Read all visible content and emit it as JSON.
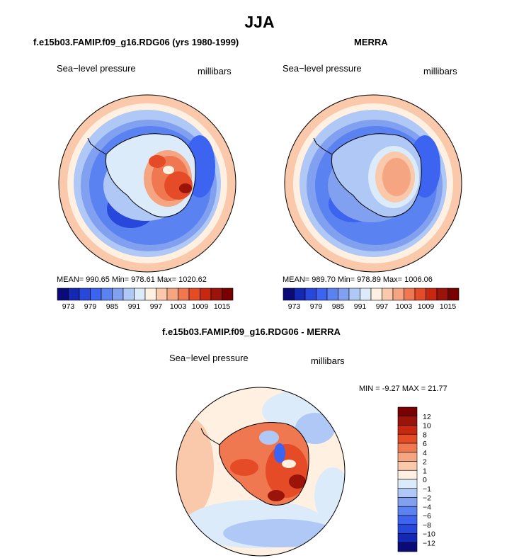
{
  "title": "JJA",
  "colors": {
    "mean_scale": [
      "#0a0a78",
      "#1428b4",
      "#2848dc",
      "#3c64f0",
      "#5a82f0",
      "#82a0f0",
      "#afc8f5",
      "#dcebfa",
      "#fff0e1",
      "#fac8aa",
      "#f5a582",
      "#f07850",
      "#e64b28",
      "#c8280f",
      "#9b140a",
      "#780000"
    ],
    "diff_scale": [
      "#0a0a78",
      "#1428b4",
      "#2848dc",
      "#3c64f0",
      "#5a82f0",
      "#82a0f0",
      "#afc8f5",
      "#dcebfa",
      "#fff0e1",
      "#fac8aa",
      "#f5a582",
      "#f07850",
      "#e64b28",
      "#c8280f",
      "#9b140a",
      "#780000"
    ],
    "coast": "#000000"
  },
  "panels": {
    "model": {
      "title": "f.e15b03.FAMIP.f09_g16.RDG06 (yrs 1980-1999)",
      "variable": "Sea−level pressure",
      "units": "millibars",
      "stats": "MEAN= 990.65   Min= 978.61   Max= 1020.62"
    },
    "obs": {
      "title": "MERRA",
      "variable": "Sea−level pressure",
      "units": "millibars",
      "stats": "MEAN= 989.70   Min= 978.89   Max= 1006.06"
    },
    "diff": {
      "title": "f.e15b03.FAMIP.f09_g16.RDG06 - MERRA",
      "variable": "Sea−level pressure",
      "units": "millibars",
      "minmax": "MIN =   -9.27 MAX =   21.77"
    }
  },
  "chart_data": [
    {
      "type": "heatmap",
      "title": "f.e15b03.FAMIP.f09_g16.RDG06 (yrs 1980-1999)",
      "variable": "Sea−level pressure",
      "units": "millibars",
      "projection": "south-polar stereographic",
      "mean": 990.65,
      "min": 978.61,
      "max": 1020.62,
      "colorbar_ticks": [
        "973",
        "979",
        "985",
        "991",
        "997",
        "1003",
        "1009",
        "1015"
      ]
    },
    {
      "type": "heatmap",
      "title": "MERRA",
      "variable": "Sea−level pressure",
      "units": "millibars",
      "projection": "south-polar stereographic",
      "mean": 989.7,
      "min": 978.89,
      "max": 1006.06,
      "colorbar_ticks": [
        "973",
        "979",
        "985",
        "991",
        "997",
        "1003",
        "1009",
        "1015"
      ]
    },
    {
      "type": "heatmap",
      "title": "f.e15b03.FAMIP.f09_g16.RDG06 - MERRA",
      "variable": "Sea−level pressure",
      "units": "millibars",
      "projection": "south-polar stereographic",
      "min": -9.27,
      "max": 21.77,
      "colorbar_ticks": [
        "12",
        "10",
        "8",
        "6",
        "4",
        "2",
        "1",
        "0",
        "−1",
        "−2",
        "−4",
        "−6",
        "−8",
        "−10",
        "−12"
      ],
      "colorbar_orientation": "vertical"
    }
  ]
}
